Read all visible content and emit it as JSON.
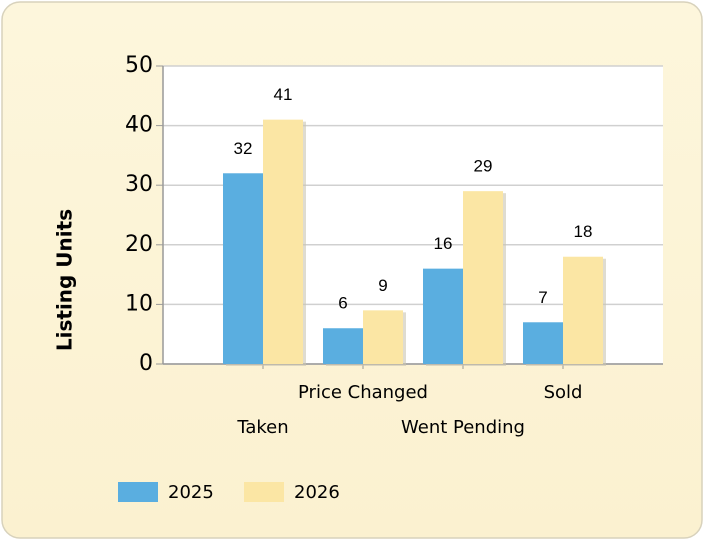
{
  "chart_data": {
    "type": "bar",
    "y_label": "Listing Units",
    "categories": [
      "Taken",
      "Price Changed",
      "Went Pending",
      "Sold"
    ],
    "series": [
      {
        "name": "2025",
        "color": "#5aaee0",
        "values": [
          32,
          6,
          16,
          7
        ]
      },
      {
        "name": "2026",
        "color": "#fbe6a4",
        "values": [
          41,
          9,
          29,
          18
        ]
      }
    ],
    "ylim": [
      0,
      50
    ],
    "yticks": [
      0,
      10,
      20,
      30,
      40,
      50
    ],
    "grid": true,
    "legend": "bottom-left"
  }
}
